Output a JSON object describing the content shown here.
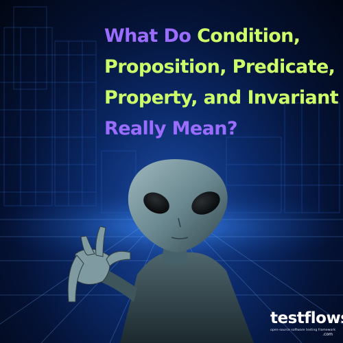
{
  "headline": {
    "line1_purple": "What Do ",
    "line1_lime": "Condition,",
    "line2": "Proposition, Predicate,",
    "line3": "Property, and Invariant",
    "line4": "Really Mean?"
  },
  "logo": {
    "word": "testflows",
    "domain": ".com",
    "tagline": "open-source software testing framework"
  },
  "colors": {
    "purple": "#9b6dff",
    "lime": "#ccff6a",
    "background": "#041235"
  }
}
